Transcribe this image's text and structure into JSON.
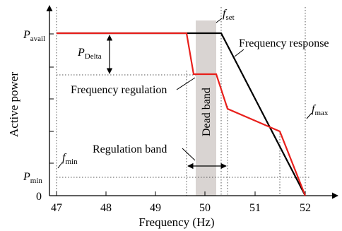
{
  "labels": {
    "p_avail": {
      "main": "P",
      "sub": "avail"
    },
    "p_delta": {
      "main": "P",
      "sub": "Delta"
    },
    "p_min": {
      "main": "P",
      "sub": "min"
    },
    "f_set": {
      "main": "f",
      "sub": "set"
    },
    "f_max": {
      "main": "f",
      "sub": "max"
    },
    "f_min": {
      "main": "f",
      "sub": "min"
    },
    "frequency_response": "Frequency response",
    "frequency_regulation": "Frequency regulation",
    "dead_band": "Dead band",
    "regulation_band": "Regulation band",
    "y_axis_title": "Active power",
    "x_axis_title": "Frequency (Hz)"
  },
  "x_ticks": [
    "47",
    "48",
    "49",
    "50",
    "51",
    "52"
  ],
  "y_zero": "0",
  "colors": {
    "response_line": "#000000",
    "regulation_line": "#e8201c",
    "dead_band_fill": "#d9d4d2"
  }
}
